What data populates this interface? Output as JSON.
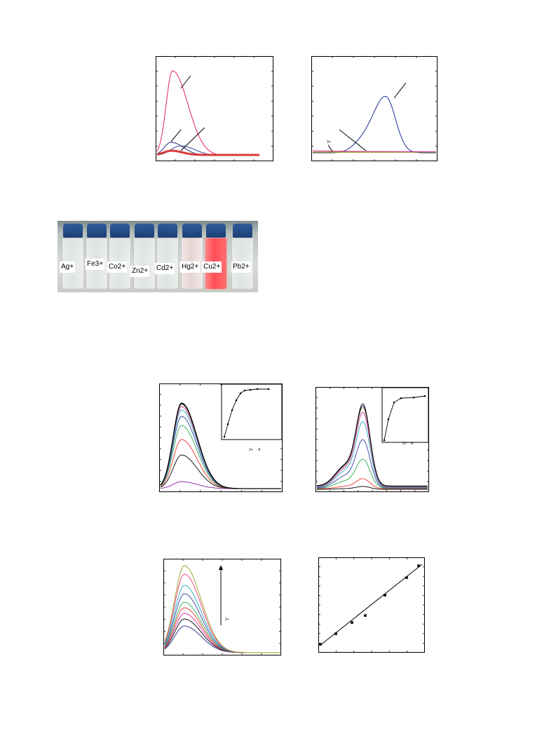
{
  "photo": {
    "labels": [
      "Ag+",
      "Fe3+",
      "Co2+",
      "Zn2+",
      "Cd2+",
      "Hg2+",
      "Cu2+",
      "Pb2+"
    ],
    "colors": {
      "cap": "#2a548e",
      "highlight_solution": "#ff4d55"
    }
  },
  "fig_a": {
    "tiny_label": ""
  },
  "fig_b": {
    "tiny_label": "3+"
  },
  "fig_c": {
    "inset_label": "2+",
    "inset_label2": "-6"
  },
  "fig_d": {
    "inset_label": "2+",
    "inset_label2": "-6"
  },
  "fig_e": {
    "arrow_label": "2+"
  },
  "colors": {
    "pink": "#e8336e",
    "navy": "#1f2a80",
    "blue": "#2b3fa0",
    "purple": "#8a1aa0",
    "red": "#e8352a",
    "green": "#2aa84a",
    "teal": "#20a8b8",
    "cyan": "#35c0e0",
    "magenta": "#d82a9a",
    "olive": "#9a9a20"
  }
}
